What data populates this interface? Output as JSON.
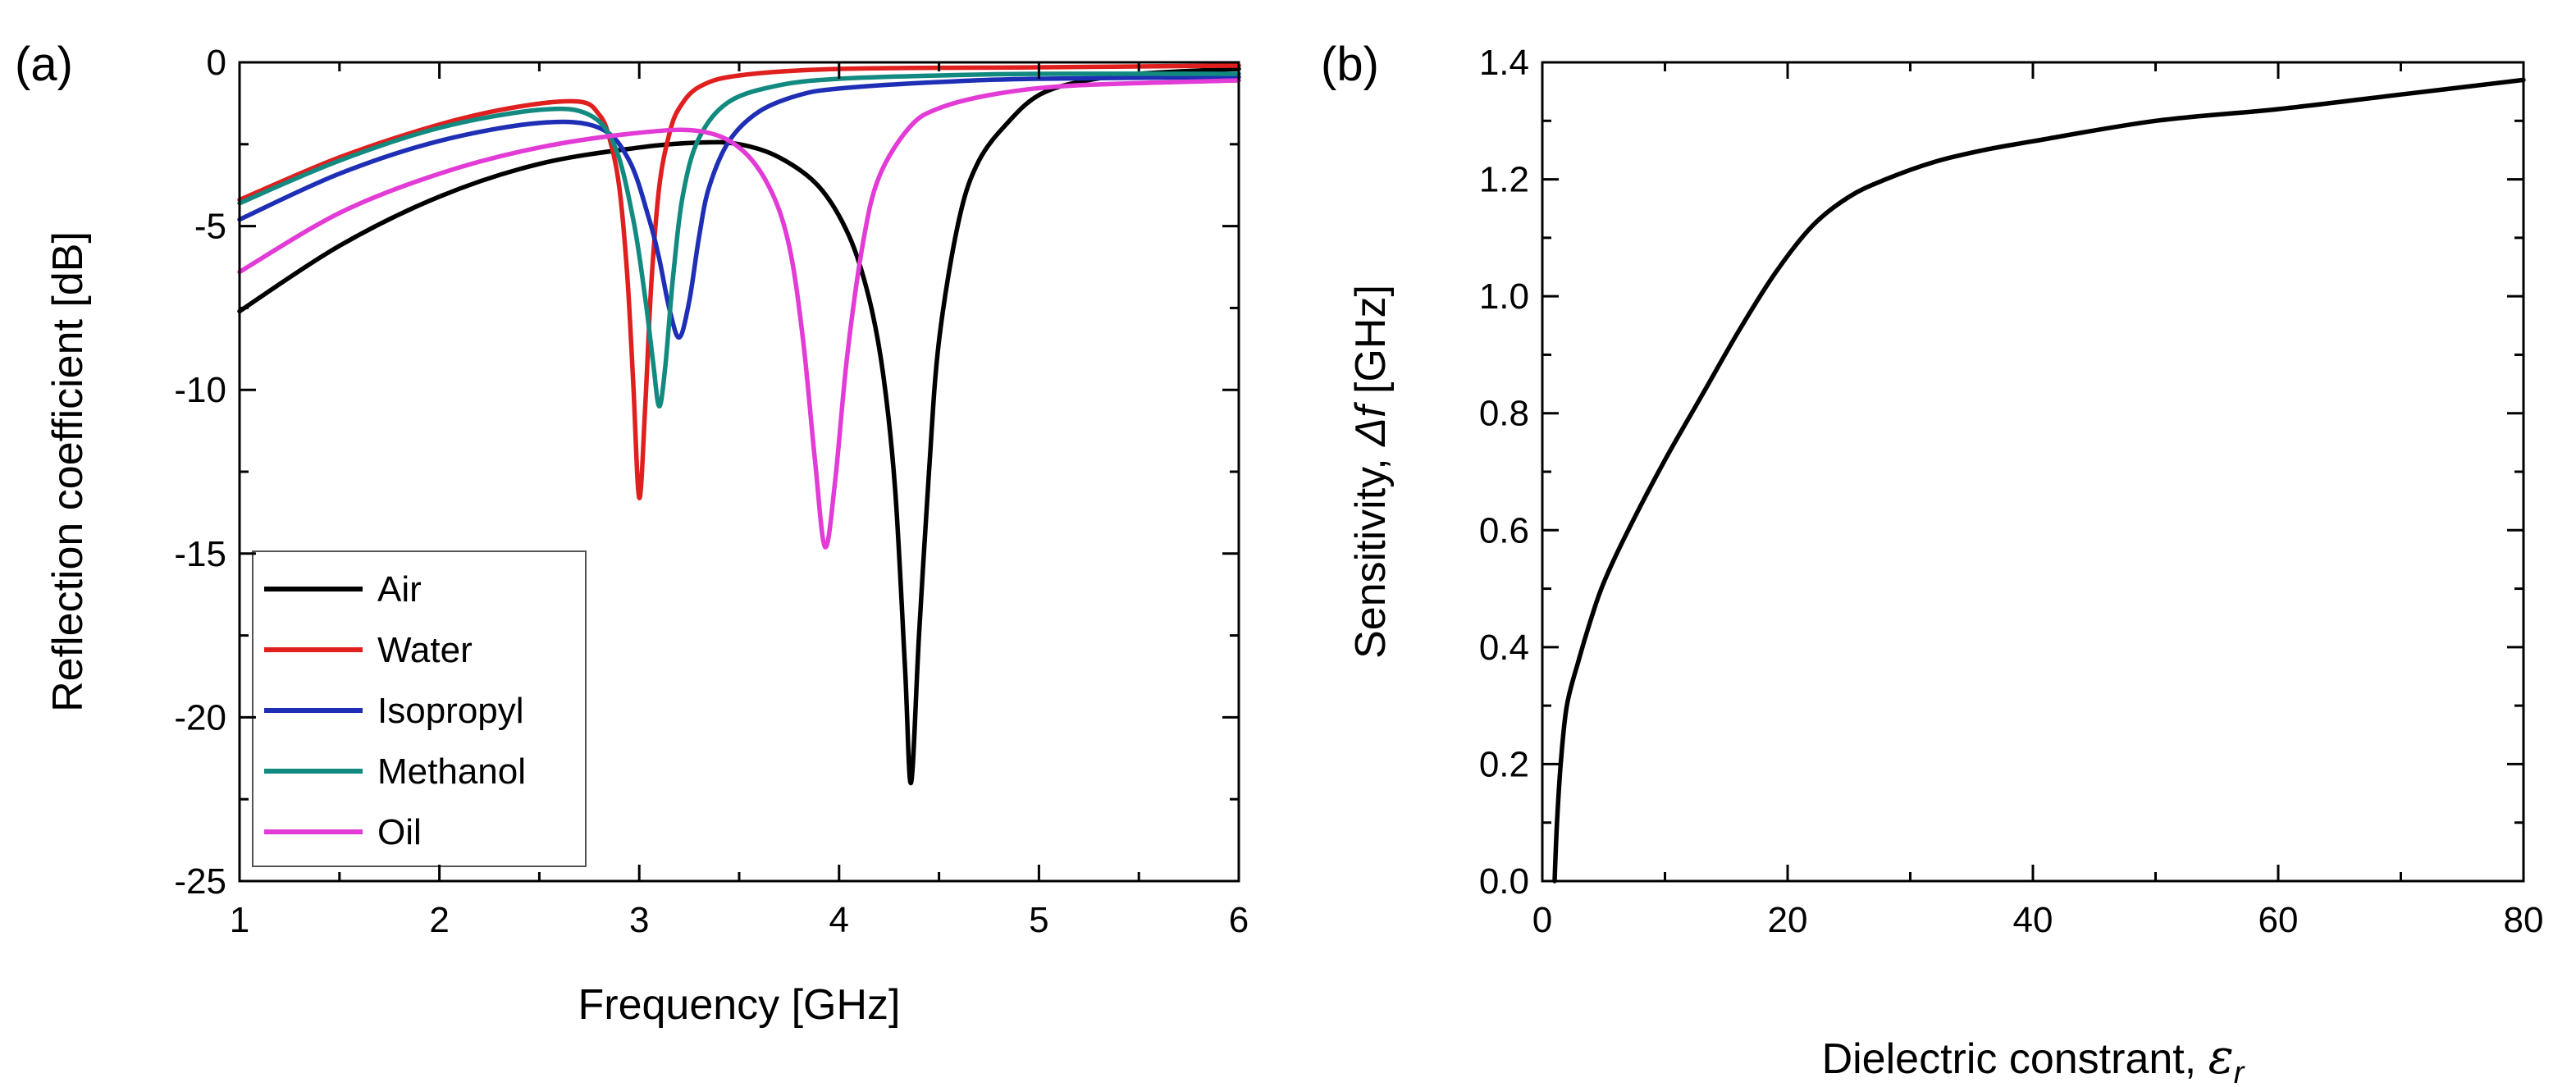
{
  "chart_data": [
    {
      "panel": "(a)",
      "type": "line",
      "xlabel": "Frequency [GHz]",
      "ylabel": "Reflection coefficient [dB]",
      "xlim": [
        1,
        6
      ],
      "ylim": [
        -25,
        0
      ],
      "xticks": [
        1,
        2,
        3,
        4,
        5,
        6
      ],
      "yticks": [
        -25,
        -20,
        -15,
        -10,
        -5,
        0
      ],
      "legend": {
        "position": "bottom-left",
        "entries": [
          "Air",
          "Water",
          "Isopropyl",
          "Methanol",
          "Oil"
        ]
      },
      "series": [
        {
          "name": "Air",
          "color": "#000000",
          "x": [
            1.0,
            1.5,
            2.0,
            2.5,
            3.0,
            3.3,
            3.5,
            3.7,
            3.9,
            4.05,
            4.15,
            4.22,
            4.28,
            4.33,
            4.36,
            4.4,
            4.45,
            4.5,
            4.6,
            4.7,
            4.85,
            5.0,
            5.2,
            5.5,
            6.0
          ],
          "y": [
            -7.6,
            -5.6,
            -4.1,
            -3.1,
            -2.6,
            -2.45,
            -2.5,
            -2.9,
            -3.8,
            -5.3,
            -7.2,
            -9.5,
            -13.0,
            -18.5,
            -22.0,
            -17.5,
            -12.5,
            -8.5,
            -4.8,
            -3.0,
            -1.8,
            -1.0,
            -0.6,
            -0.35,
            -0.2
          ]
        },
        {
          "name": "Water",
          "color": "#e01f1f",
          "x": [
            1.0,
            1.5,
            2.0,
            2.4,
            2.7,
            2.8,
            2.85,
            2.9,
            2.94,
            2.97,
            3.0,
            3.03,
            3.06,
            3.1,
            3.15,
            3.2,
            3.3,
            3.5,
            4.0,
            5.0,
            6.0
          ],
          "y": [
            -4.2,
            -2.9,
            -1.9,
            -1.35,
            -1.2,
            -1.6,
            -2.3,
            -3.8,
            -6.5,
            -9.8,
            -13.3,
            -10.5,
            -6.8,
            -3.8,
            -2.2,
            -1.4,
            -0.75,
            -0.4,
            -0.2,
            -0.15,
            -0.1
          ]
        },
        {
          "name": "Isopropyl",
          "color": "#1f2fb5",
          "x": [
            1.0,
            1.5,
            2.0,
            2.5,
            2.8,
            2.95,
            3.05,
            3.1,
            3.15,
            3.2,
            3.25,
            3.3,
            3.35,
            3.45,
            3.6,
            3.8,
            4.0,
            4.5,
            5.0,
            6.0
          ],
          "y": [
            -4.8,
            -3.4,
            -2.4,
            -1.85,
            -2.0,
            -3.0,
            -4.8,
            -6.0,
            -7.5,
            -8.4,
            -7.3,
            -5.3,
            -3.8,
            -2.4,
            -1.5,
            -1.0,
            -0.8,
            -0.6,
            -0.5,
            -0.45
          ]
        },
        {
          "name": "Methanol",
          "color": "#128a80",
          "x": [
            1.0,
            1.5,
            2.0,
            2.5,
            2.75,
            2.88,
            2.97,
            3.03,
            3.07,
            3.1,
            3.13,
            3.17,
            3.22,
            3.3,
            3.45,
            3.7,
            4.0,
            4.5,
            5.0,
            6.0
          ],
          "y": [
            -4.3,
            -3.0,
            -2.0,
            -1.45,
            -1.6,
            -2.6,
            -4.8,
            -7.2,
            -9.2,
            -10.5,
            -9.3,
            -6.5,
            -4.0,
            -2.3,
            -1.2,
            -0.7,
            -0.5,
            -0.4,
            -0.35,
            -0.35
          ]
        },
        {
          "name": "Oil",
          "color": "#e23bd6",
          "x": [
            1.0,
            1.5,
            2.0,
            2.5,
            3.0,
            3.3,
            3.5,
            3.65,
            3.75,
            3.82,
            3.88,
            3.93,
            3.98,
            4.04,
            4.12,
            4.2,
            4.35,
            4.5,
            4.8,
            5.2,
            6.0
          ],
          "y": [
            -6.4,
            -4.6,
            -3.4,
            -2.6,
            -2.15,
            -2.1,
            -2.6,
            -3.8,
            -5.6,
            -8.5,
            -12.2,
            -14.8,
            -12.8,
            -9.0,
            -5.5,
            -3.5,
            -2.0,
            -1.4,
            -0.95,
            -0.7,
            -0.55
          ]
        }
      ]
    },
    {
      "panel": "(b)",
      "type": "line",
      "xlabel_prefix": "Dielectric constrant, ",
      "xlabel_symbol": "ε",
      "xlabel_sub": "r",
      "ylabel_prefix": "Sensitivity, ",
      "ylabel_symbol": "Δf",
      "ylabel_suffix": " [GHz]",
      "xlim": [
        0,
        80
      ],
      "ylim": [
        0.0,
        1.4
      ],
      "xticks": [
        0,
        20,
        40,
        60,
        80
      ],
      "yticks": [
        "0.0",
        "0.2",
        "0.4",
        "0.6",
        "0.8",
        "1.0",
        "1.2",
        "1.4"
      ],
      "series": [
        {
          "name": "Sensitivity",
          "color": "#000000",
          "x": [
            1.0,
            1.2,
            1.5,
            2,
            3,
            4,
            5,
            7,
            10,
            13,
            16,
            19,
            22,
            25,
            28,
            32,
            36,
            40,
            50,
            60,
            70,
            80
          ],
          "y": [
            0.0,
            0.1,
            0.2,
            0.3,
            0.38,
            0.45,
            0.51,
            0.6,
            0.72,
            0.83,
            0.94,
            1.04,
            1.12,
            1.17,
            1.2,
            1.23,
            1.25,
            1.265,
            1.3,
            1.32,
            1.345,
            1.37
          ]
        }
      ]
    }
  ]
}
